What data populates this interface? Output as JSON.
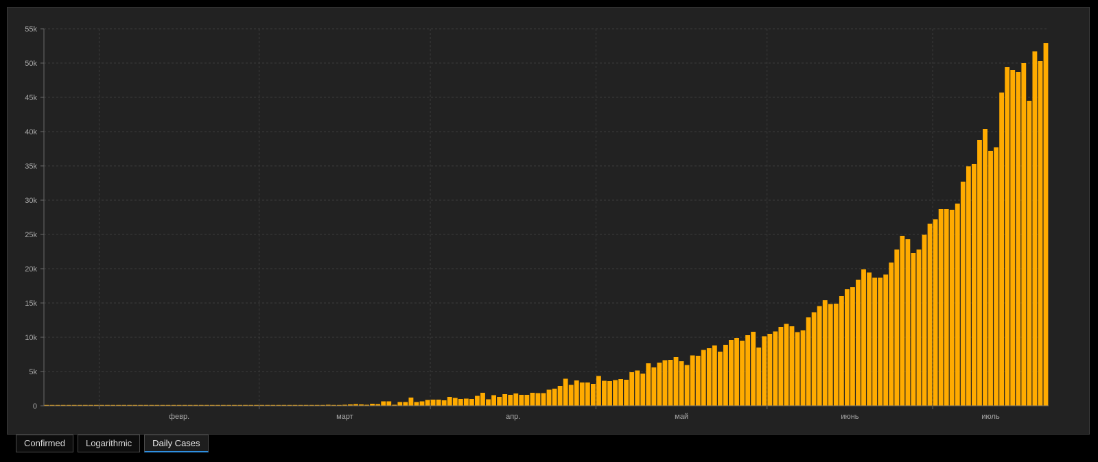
{
  "colors": {
    "background": "#000000",
    "panel": "#222222",
    "bar": "#ffab00",
    "active_tab_accent": "#2f8fe0"
  },
  "tabs": [
    {
      "label": "Confirmed",
      "active": false
    },
    {
      "label": "Logarithmic",
      "active": false
    },
    {
      "label": "Daily Cases",
      "active": true
    }
  ],
  "chart_data": {
    "type": "bar",
    "title": "",
    "xlabel": "",
    "ylabel": "",
    "grid": true,
    "ylim": [
      0,
      55000
    ],
    "y_ticks": [
      {
        "value": 0,
        "label": "0"
      },
      {
        "value": 5000,
        "label": "5k"
      },
      {
        "value": 10000,
        "label": "10k"
      },
      {
        "value": 15000,
        "label": "15k"
      },
      {
        "value": 20000,
        "label": "20k"
      },
      {
        "value": 25000,
        "label": "25k"
      },
      {
        "value": 30000,
        "label": "30k"
      },
      {
        "value": 35000,
        "label": "35k"
      },
      {
        "value": 40000,
        "label": "40k"
      },
      {
        "value": 45000,
        "label": "45k"
      },
      {
        "value": 50000,
        "label": "50k"
      },
      {
        "value": 55000,
        "label": "55k"
      }
    ],
    "x_ticks": [
      {
        "label": "февр."
      },
      {
        "label": "март"
      },
      {
        "label": "апр."
      },
      {
        "label": "май"
      },
      {
        "label": "июнь"
      },
      {
        "label": "июль"
      }
    ],
    "start_date": "2020-01-22",
    "values": [
      0,
      0,
      0,
      0,
      0,
      0,
      0,
      0,
      0,
      0,
      0,
      0,
      0,
      0,
      0,
      0,
      0,
      0,
      0,
      0,
      0,
      0,
      0,
      0,
      0,
      0,
      0,
      0,
      0,
      0,
      0,
      0,
      0,
      0,
      0,
      0,
      0,
      0,
      0,
      0,
      0,
      0,
      0,
      0,
      0,
      0,
      0,
      0,
      0,
      0,
      100,
      150,
      120,
      80,
      150,
      200,
      250,
      200,
      150,
      300,
      250,
      650,
      650,
      150,
      550,
      550,
      1200,
      550,
      650,
      850,
      900,
      900,
      800,
      1300,
      1150,
      1000,
      1050,
      1000,
      1450,
      1900,
      950,
      1550,
      1300,
      1700,
      1600,
      1800,
      1600,
      1600,
      1900,
      1850,
      1850,
      2350,
      2500,
      2900,
      3950,
      3050,
      3700,
      3400,
      3400,
      3200,
      4350,
      3650,
      3600,
      3750,
      3900,
      3800,
      4900,
      5150,
      4700,
      6200,
      5600,
      6300,
      6650,
      6700,
      7100,
      6500,
      5950,
      7350,
      7300,
      8150,
      8400,
      8800,
      7900,
      8900,
      9600,
      9900,
      9500,
      10300,
      10800,
      8500,
      10150,
      10500,
      10850,
      11500,
      11950,
      11600,
      10750,
      11000,
      12900,
      13650,
      14550,
      15400,
      14850,
      14900,
      16000,
      17000,
      17300,
      18400,
      19900,
      19450,
      18700,
      18700,
      19150,
      20900,
      22800,
      24800,
      24300,
      22300,
      22800,
      24950,
      26550,
      27200,
      28700,
      28700,
      28600,
      29500,
      32700,
      34950,
      35300,
      38800,
      40400,
      37200,
      37700,
      45700,
      49400,
      49000,
      48700,
      50000,
      44500,
      51700,
      50300,
      52900
    ]
  }
}
